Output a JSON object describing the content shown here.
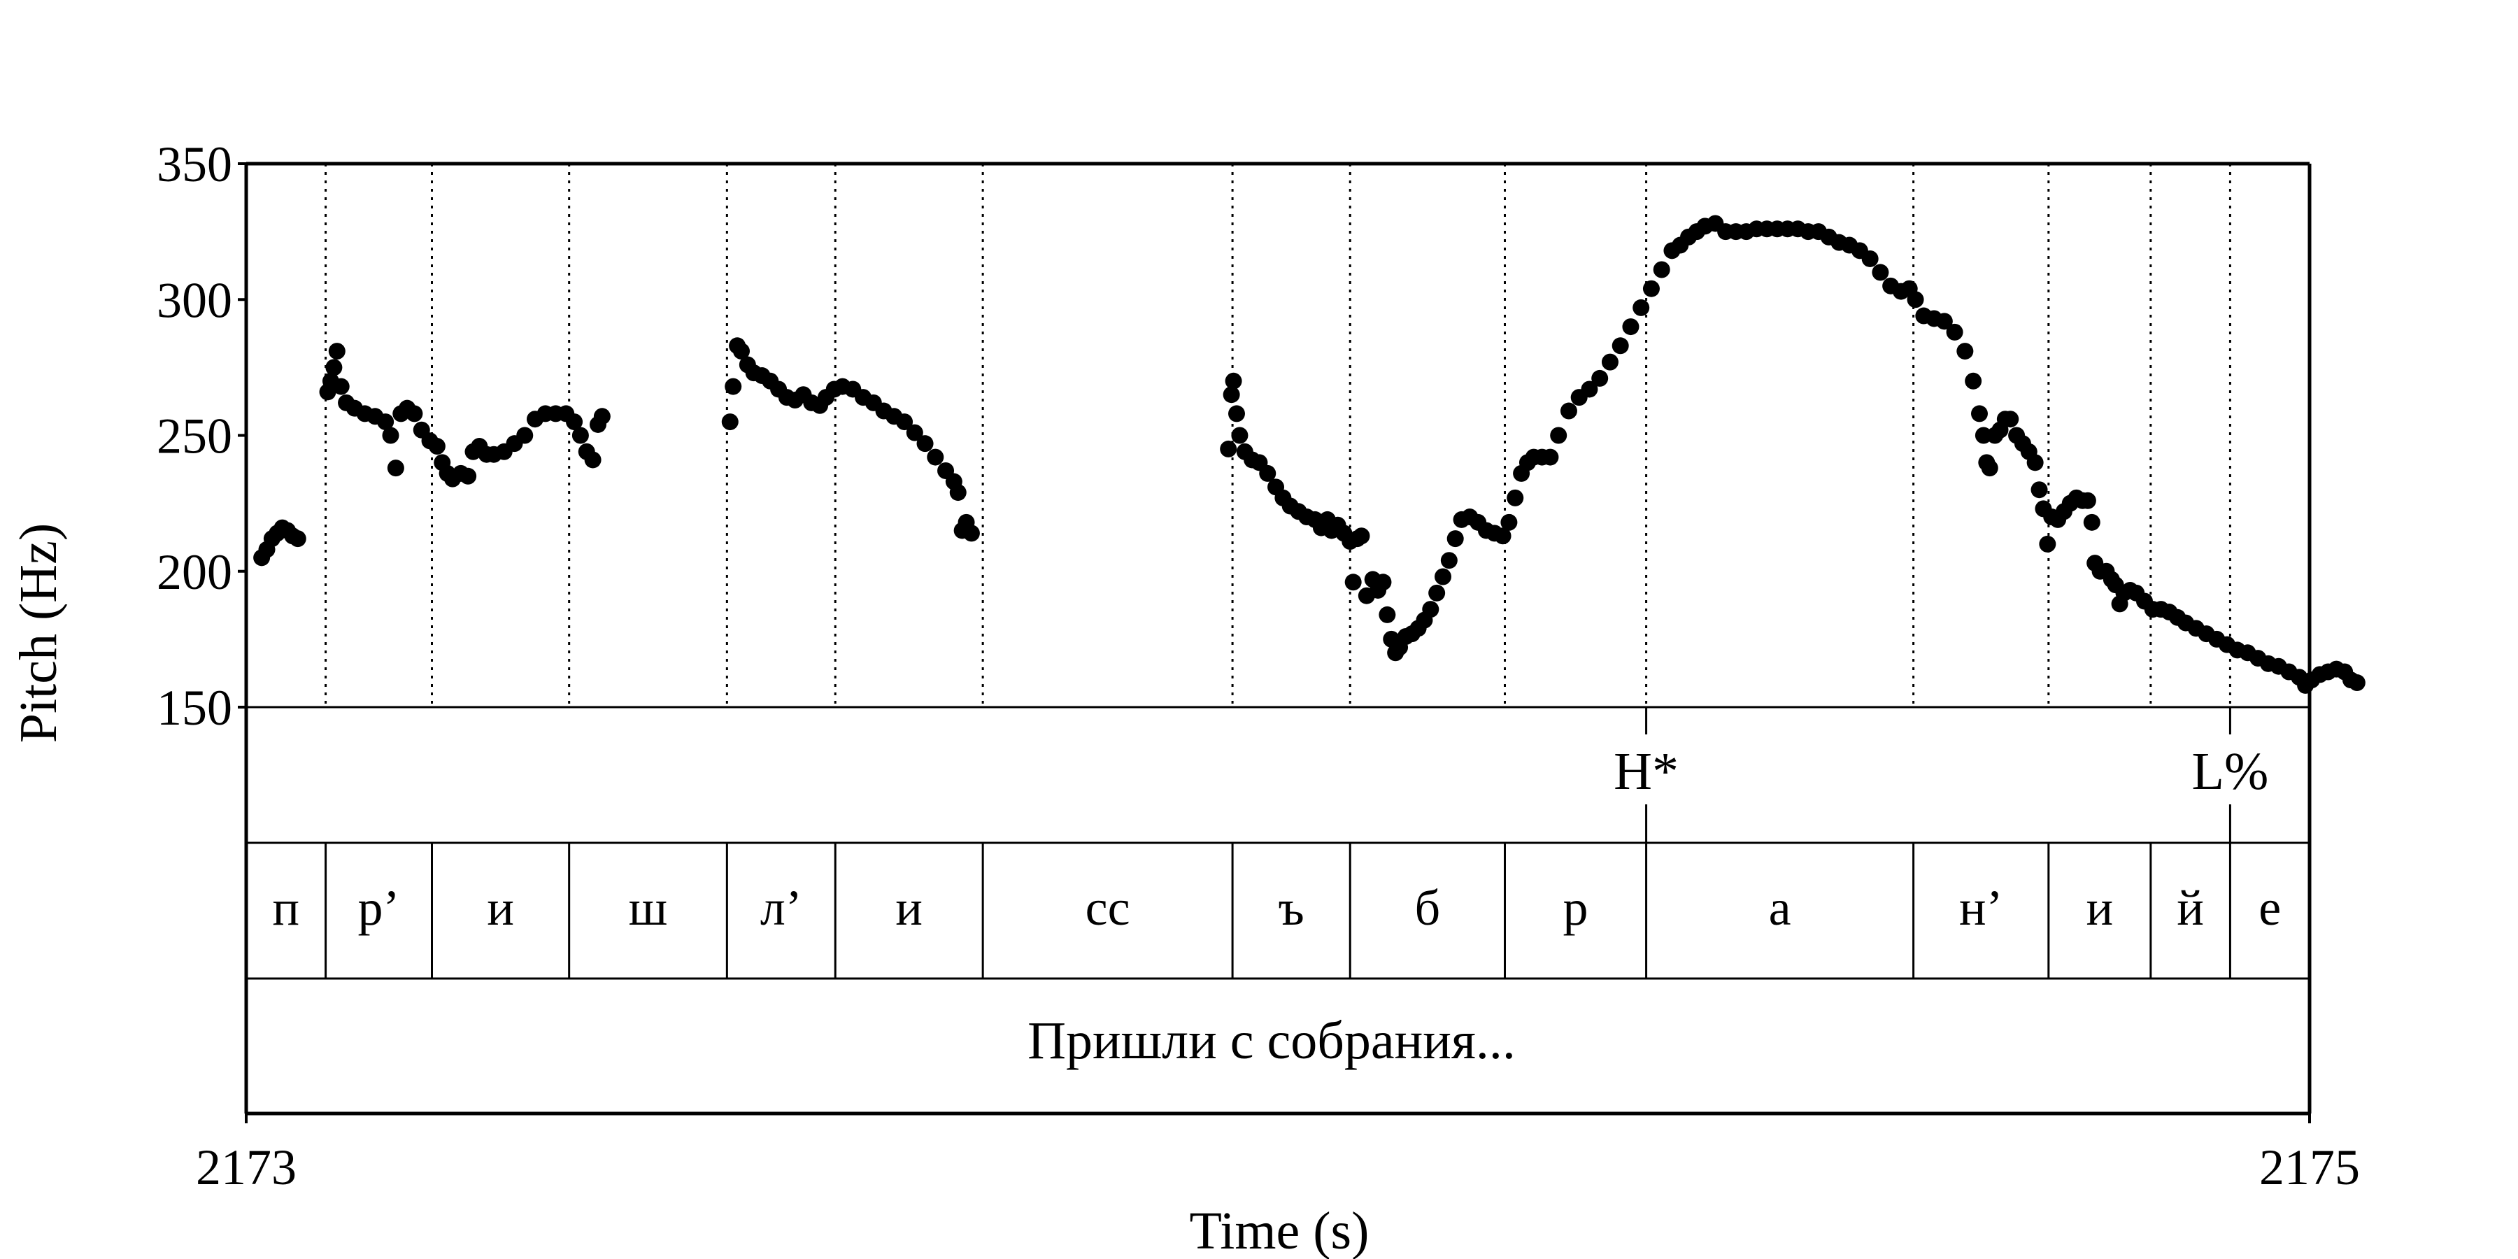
{
  "chart_data": {
    "type": "scatter",
    "ylabel": "Pitch (Hz)",
    "xlabel": "Time (s)",
    "ylim": [
      150,
      350
    ],
    "yticks": [
      "150",
      "200",
      "250",
      "300",
      "350"
    ],
    "xlim": [
      2173,
      2175
    ],
    "xticks": [
      "2173",
      "2175"
    ],
    "grid": false,
    "boundaries": [
      2173.077,
      2173.18,
      2173.313,
      2173.466,
      2173.571,
      2173.714,
      2173.956,
      2174.07,
      2174.22,
      2174.357,
      2174.616,
      2174.747,
      2174.846,
      2174.923
    ],
    "tones": [
      {
        "time": 2174.357,
        "label": "H*"
      },
      {
        "time": 2174.923,
        "label": "L%"
      }
    ],
    "segments": [
      "п",
      "р’",
      "и",
      "ш",
      "л’",
      "и",
      "сс",
      "ъ",
      "б",
      "р",
      "а",
      "н’",
      "и",
      "й",
      "е"
    ],
    "utterance": "Пришли с собрания...",
    "pitch_tracks": [
      [
        [
          2173.015,
          205
        ],
        [
          2173.02,
          208
        ],
        [
          2173.025,
          212
        ],
        [
          2173.03,
          214
        ],
        [
          2173.035,
          216
        ],
        [
          2173.04,
          215
        ],
        [
          2173.045,
          213
        ],
        [
          2173.05,
          212
        ]
      ],
      [
        [
          2173.079,
          266
        ],
        [
          2173.082,
          270
        ],
        [
          2173.085,
          275
        ],
        [
          2173.088,
          281
        ],
        [
          2173.092,
          268
        ],
        [
          2173.097,
          262
        ],
        [
          2173.105,
          260
        ],
        [
          2173.115,
          258
        ],
        [
          2173.125,
          257
        ],
        [
          2173.135,
          255
        ],
        [
          2173.14,
          250
        ],
        [
          2173.145,
          238
        ],
        [
          2173.15,
          258
        ],
        [
          2173.156,
          260
        ],
        [
          2173.163,
          258
        ],
        [
          2173.17,
          252
        ],
        [
          2173.178,
          248
        ],
        [
          2173.185,
          246
        ],
        [
          2173.19,
          240
        ],
        [
          2173.195,
          236
        ],
        [
          2173.2,
          234
        ],
        [
          2173.208,
          236
        ],
        [
          2173.215,
          235
        ],
        [
          2173.22,
          244
        ],
        [
          2173.226,
          246
        ],
        [
          2173.233,
          243
        ],
        [
          2173.24,
          243
        ],
        [
          2173.25,
          244
        ],
        [
          2173.26,
          247
        ],
        [
          2173.27,
          250
        ],
        [
          2173.28,
          256
        ],
        [
          2173.29,
          258
        ],
        [
          2173.3,
          258
        ],
        [
          2173.31,
          258
        ],
        [
          2173.318,
          255
        ],
        [
          2173.324,
          250
        ],
        [
          2173.33,
          244
        ],
        [
          2173.336,
          241
        ],
        [
          2173.341,
          254
        ],
        [
          2173.345,
          257
        ]
      ],
      [
        [
          2173.469,
          255
        ],
        [
          2173.472,
          268
        ],
        [
          2173.476,
          283
        ],
        [
          2173.48,
          281
        ],
        [
          2173.486,
          276
        ],
        [
          2173.492,
          273
        ],
        [
          2173.5,
          272
        ],
        [
          2173.508,
          270
        ],
        [
          2173.516,
          267
        ],
        [
          2173.524,
          264
        ],
        [
          2173.532,
          263
        ],
        [
          2173.54,
          265
        ],
        [
          2173.548,
          262
        ],
        [
          2173.556,
          261
        ],
        [
          2173.562,
          264
        ],
        [
          2173.57,
          267
        ],
        [
          2173.578,
          268
        ],
        [
          2173.588,
          267
        ],
        [
          2173.598,
          264
        ],
        [
          2173.608,
          262
        ],
        [
          2173.618,
          259
        ],
        [
          2173.628,
          257
        ],
        [
          2173.638,
          255
        ],
        [
          2173.648,
          251
        ],
        [
          2173.658,
          247
        ],
        [
          2173.668,
          242
        ],
        [
          2173.678,
          237
        ],
        [
          2173.686,
          233
        ],
        [
          2173.69,
          229
        ],
        [
          2173.694,
          215
        ],
        [
          2173.698,
          218
        ],
        [
          2173.703,
          214
        ]
      ],
      [
        [
          2173.952,
          245
        ],
        [
          2173.955,
          265
        ],
        [
          2173.957,
          270
        ],
        [
          2173.96,
          258
        ],
        [
          2173.963,
          250
        ],
        [
          2173.968,
          244
        ],
        [
          2173.975,
          241
        ],
        [
          2173.982,
          240
        ],
        [
          2173.99,
          236
        ],
        [
          2173.998,
          231
        ],
        [
          2174.005,
          227
        ],
        [
          2174.012,
          224
        ],
        [
          2174.02,
          222
        ],
        [
          2174.028,
          220
        ],
        [
          2174.036,
          219
        ],
        [
          2174.042,
          216
        ],
        [
          2174.048,
          219
        ],
        [
          2174.052,
          215
        ],
        [
          2174.058,
          217
        ],
        [
          2174.064,
          214
        ],
        [
          2174.07,
          211
        ],
        [
          2174.073,
          196
        ],
        [
          2174.077,
          212
        ],
        [
          2174.081,
          213
        ],
        [
          2174.086,
          191
        ],
        [
          2174.092,
          197
        ],
        [
          2174.097,
          193
        ],
        [
          2174.102,
          196
        ],
        [
          2174.106,
          184
        ],
        [
          2174.11,
          175
        ],
        [
          2174.114,
          170
        ],
        [
          2174.118,
          172
        ],
        [
          2174.124,
          176
        ],
        [
          2174.13,
          177
        ],
        [
          2174.136,
          179
        ],
        [
          2174.142,
          182
        ],
        [
          2174.148,
          186
        ],
        [
          2174.154,
          192
        ],
        [
          2174.16,
          198
        ],
        [
          2174.166,
          204
        ],
        [
          2174.172,
          212
        ],
        [
          2174.178,
          219
        ],
        [
          2174.186,
          220
        ],
        [
          2174.194,
          218
        ],
        [
          2174.202,
          215
        ],
        [
          2174.21,
          214
        ],
        [
          2174.218,
          213
        ],
        [
          2174.224,
          218
        ],
        [
          2174.23,
          227
        ],
        [
          2174.236,
          236
        ],
        [
          2174.242,
          240
        ],
        [
          2174.248,
          242
        ],
        [
          2174.256,
          242
        ],
        [
          2174.264,
          242
        ],
        [
          2174.272,
          250
        ],
        [
          2174.282,
          259
        ],
        [
          2174.292,
          264
        ],
        [
          2174.302,
          267
        ],
        [
          2174.312,
          271
        ],
        [
          2174.322,
          277
        ],
        [
          2174.332,
          283
        ],
        [
          2174.342,
          290
        ],
        [
          2174.352,
          297
        ],
        [
          2174.362,
          304
        ],
        [
          2174.372,
          311
        ],
        [
          2174.382,
          318
        ],
        [
          2174.39,
          320
        ],
        [
          2174.398,
          323
        ],
        [
          2174.406,
          325
        ],
        [
          2174.414,
          327
        ],
        [
          2174.424,
          328
        ],
        [
          2174.434,
          325
        ],
        [
          2174.444,
          325
        ],
        [
          2174.454,
          325
        ],
        [
          2174.464,
          326
        ],
        [
          2174.474,
          326
        ],
        [
          2174.484,
          326
        ],
        [
          2174.494,
          326
        ],
        [
          2174.504,
          326
        ],
        [
          2174.514,
          325
        ],
        [
          2174.524,
          325
        ],
        [
          2174.534,
          323
        ],
        [
          2174.544,
          321
        ],
        [
          2174.554,
          320
        ],
        [
          2174.564,
          318
        ],
        [
          2174.574,
          315
        ],
        [
          2174.584,
          310
        ],
        [
          2174.594,
          305
        ],
        [
          2174.604,
          303
        ],
        [
          2174.612,
          304
        ],
        [
          2174.618,
          300
        ],
        [
          2174.626,
          294
        ],
        [
          2174.636,
          293
        ],
        [
          2174.646,
          292
        ],
        [
          2174.656,
          288
        ],
        [
          2174.666,
          281
        ],
        [
          2174.674,
          270
        ],
        [
          2174.68,
          258
        ],
        [
          2174.684,
          250
        ],
        [
          2174.687,
          240
        ],
        [
          2174.69,
          238
        ],
        [
          2174.695,
          250
        ],
        [
          2174.7,
          252
        ],
        [
          2174.705,
          256
        ],
        [
          2174.71,
          256
        ],
        [
          2174.716,
          250
        ],
        [
          2174.722,
          247
        ],
        [
          2174.728,
          244
        ],
        [
          2174.734,
          240
        ],
        [
          2174.738,
          230
        ],
        [
          2174.742,
          223
        ],
        [
          2174.746,
          210
        ],
        [
          2174.75,
          220
        ],
        [
          2174.756,
          219
        ],
        [
          2174.762,
          222
        ],
        [
          2174.768,
          225
        ],
        [
          2174.774,
          227
        ],
        [
          2174.78,
          226
        ],
        [
          2174.785,
          226
        ],
        [
          2174.789,
          218
        ],
        [
          2174.792,
          203
        ],
        [
          2174.797,
          200
        ],
        [
          2174.803,
          200
        ],
        [
          2174.808,
          197
        ],
        [
          2174.812,
          195
        ],
        [
          2174.816,
          188
        ],
        [
          2174.82,
          192
        ],
        [
          2174.826,
          193
        ],
        [
          2174.832,
          192
        ],
        [
          2174.84,
          189
        ],
        [
          2174.848,
          186
        ],
        [
          2174.856,
          186
        ],
        [
          2174.864,
          185
        ],
        [
          2174.872,
          183
        ],
        [
          2174.88,
          181
        ],
        [
          2174.89,
          179
        ],
        [
          2174.9,
          177
        ],
        [
          2174.91,
          175
        ],
        [
          2174.92,
          173
        ],
        [
          2174.93,
          171
        ],
        [
          2174.94,
          170
        ],
        [
          2174.95,
          168
        ],
        [
          2174.96,
          166
        ],
        [
          2174.97,
          165
        ],
        [
          2174.98,
          163
        ],
        [
          2174.99,
          161
        ],
        [
          2174.996,
          158
        ],
        [
          2175.002,
          160
        ],
        [
          2175.01,
          162
        ],
        [
          2175.018,
          163
        ],
        [
          2175.026,
          164
        ],
        [
          2175.034,
          163
        ],
        [
          2175.04,
          160
        ],
        [
          2175.046,
          159
        ]
      ]
    ]
  }
}
